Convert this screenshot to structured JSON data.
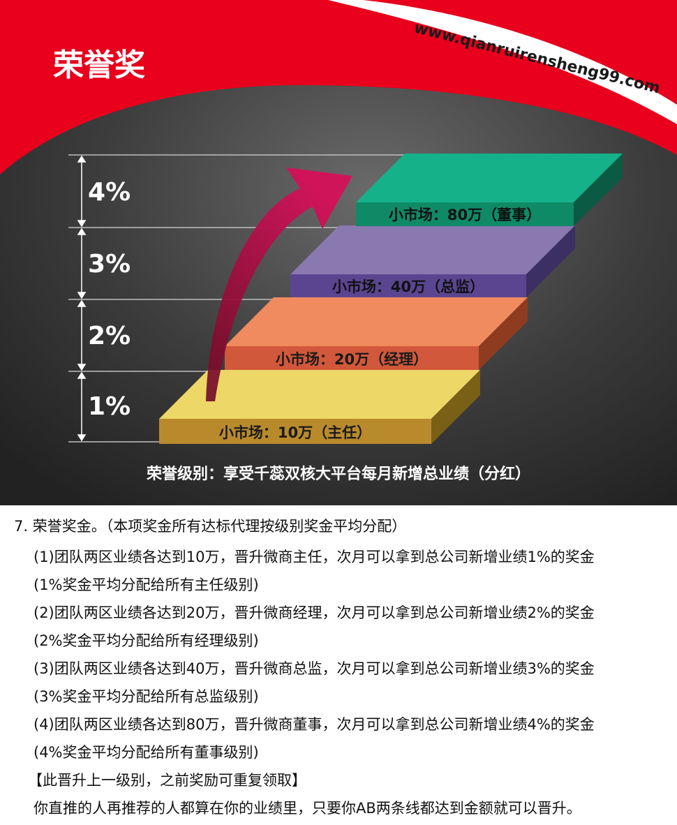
{
  "banner": {
    "title": "荣誉奖",
    "url": "www.qianruirensheng99.com",
    "levels": [
      {
        "percent": "4%",
        "label": "小市场：80万（董事）"
      },
      {
        "percent": "3%",
        "label": "小市场：40万（总监）"
      },
      {
        "percent": "2%",
        "label": "小市场：20万（经理）"
      },
      {
        "percent": "1%",
        "label": "小市场：10万（主任）"
      }
    ],
    "footer": "荣誉级别：享受千蕊双核大平台每月新增总业绩（分红）",
    "colors": {
      "red": "#e8001c",
      "dark_bg": "#2b2b2b",
      "step_director": "#15b28a",
      "step_inspector": "#8a78b0",
      "step_manager": "#ef8b5e",
      "step_supervisor": "#ecd767",
      "arrow": "#c2134e"
    }
  },
  "text": {
    "heading": "7. 荣誉奖金。（本项奖金所有达标代理按级别奖金平均分配）",
    "items": [
      "(1)团队两区业绩各达到10万，晋升微商主任，次月可以拿到总公司新增业绩1%的奖金",
      "(1%奖金平均分配给所有主任级别)",
      "(2)团队两区业绩各达到20万，晋升微商经理，次月可以拿到总公司新增业绩2%的奖金",
      "(2%奖金平均分配给所有经理级别)",
      "(3)团队两区业绩各达到40万，晋升微商总监，次月可以拿到总公司新增业绩3%的奖金",
      "(3%奖金平均分配给所有总监级别)",
      "(4)团队两区业绩各达到80万，晋升微商董事，次月可以拿到总公司新增业绩4%的奖金",
      "(4%奖金平均分配给所有董事级别)",
      "【此晋升上一级别，之前奖励可重复领取】",
      "你直推的人再推荐的人都算在你的业绩里，只要你AB两条线都达到金额就可以晋升。"
    ]
  }
}
